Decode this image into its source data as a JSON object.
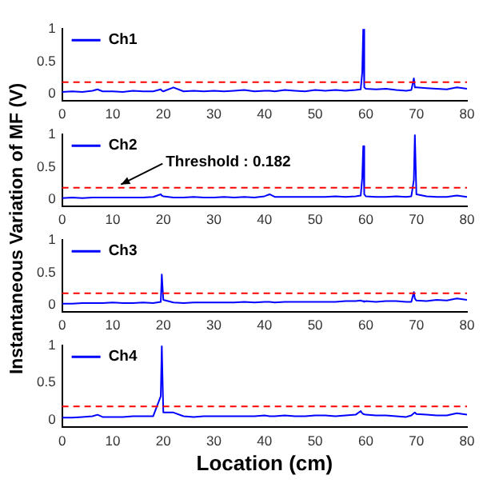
{
  "chart_data": [
    {
      "type": "line",
      "ylabel": "Instantaneous Variation of MF (V)",
      "x": [
        0,
        2,
        4,
        6,
        7,
        8,
        10,
        12,
        14,
        16,
        18,
        19.5,
        19.7,
        20,
        22,
        24,
        26,
        28,
        30,
        32,
        34,
        36,
        38,
        40,
        41,
        42,
        44,
        46,
        48,
        50,
        52,
        54,
        56,
        58,
        59,
        59.3,
        59.5,
        59.7,
        60,
        62,
        64,
        66,
        68,
        69,
        69.5,
        69.7,
        70,
        72,
        74,
        76,
        78,
        80
      ],
      "series": [
        {
          "name": "Ch1",
          "color": "#0000ff",
          "values": [
            0.03,
            0.04,
            0.03,
            0.05,
            0.07,
            0.04,
            0.04,
            0.03,
            0.05,
            0.04,
            0.04,
            0.07,
            0.05,
            0.04,
            0.1,
            0.04,
            0.05,
            0.04,
            0.05,
            0.04,
            0.05,
            0.06,
            0.04,
            0.05,
            0.05,
            0.04,
            0.06,
            0.05,
            0.04,
            0.06,
            0.05,
            0.06,
            0.05,
            0.06,
            0.07,
            0.33,
            1.0,
            0.1,
            0.08,
            0.07,
            0.08,
            0.06,
            0.05,
            0.06,
            0.24,
            0.1,
            0.1,
            0.09,
            0.08,
            0.07,
            0.1,
            0.08
          ]
        }
      ],
      "xlim": [
        0,
        80
      ],
      "xticks": [
        0,
        10,
        20,
        30,
        40,
        50,
        60,
        70,
        80
      ],
      "ylim": [
        -0.1,
        1
      ],
      "yticks": [
        0,
        0.5,
        1
      ],
      "grid": false,
      "legend": "top left",
      "marker": "none",
      "line_style": "solid",
      "ref_lines": [
        {
          "axis": "y",
          "value": 0.182,
          "color": "#ff0000",
          "line_style": "dashed"
        }
      ]
    },
    {
      "type": "line",
      "x": [
        0,
        2,
        4,
        6,
        7,
        8,
        10,
        12,
        14,
        16,
        18,
        19.5,
        19.7,
        20,
        22,
        24,
        26,
        28,
        30,
        32,
        34,
        36,
        38,
        40,
        41,
        42,
        44,
        46,
        48,
        50,
        52,
        54,
        56,
        58,
        59,
        59.3,
        59.5,
        59.7,
        60,
        62,
        64,
        66,
        68,
        69,
        69.5,
        69.7,
        70,
        72,
        74,
        76,
        78,
        80
      ],
      "series": [
        {
          "name": "Ch2",
          "color": "#0000ff",
          "values": [
            0.02,
            0.03,
            0.02,
            0.03,
            0.03,
            0.03,
            0.03,
            0.03,
            0.03,
            0.03,
            0.04,
            0.08,
            0.06,
            0.05,
            0.03,
            0.03,
            0.04,
            0.03,
            0.03,
            0.04,
            0.03,
            0.04,
            0.03,
            0.05,
            0.08,
            0.04,
            0.04,
            0.04,
            0.04,
            0.04,
            0.04,
            0.05,
            0.04,
            0.05,
            0.06,
            0.33,
            0.82,
            0.08,
            0.05,
            0.04,
            0.04,
            0.05,
            0.04,
            0.05,
            0.3,
            1.0,
            0.08,
            0.05,
            0.04,
            0.04,
            0.06,
            0.04
          ]
        }
      ],
      "xlim": [
        0,
        80
      ],
      "xticks": [
        0,
        10,
        20,
        30,
        40,
        50,
        60,
        70,
        80
      ],
      "ylim": [
        -0.1,
        1
      ],
      "yticks": [
        0,
        0.5,
        1
      ],
      "grid": false,
      "legend": "top left",
      "marker": "none",
      "line_style": "solid",
      "ref_lines": [
        {
          "axis": "y",
          "value": 0.182,
          "color": "#ff0000",
          "line_style": "dashed"
        }
      ],
      "annotations": [
        {
          "text": "Threshold : 0.182",
          "x": 11,
          "y": 0.182
        }
      ]
    },
    {
      "type": "line",
      "x": [
        0,
        2,
        4,
        6,
        7,
        8,
        10,
        12,
        14,
        16,
        18,
        19.5,
        19.7,
        20,
        22,
        24,
        26,
        28,
        30,
        32,
        34,
        36,
        38,
        40,
        41,
        42,
        44,
        46,
        48,
        50,
        52,
        54,
        56,
        58,
        59,
        59.3,
        59.5,
        59.7,
        60,
        62,
        64,
        66,
        68,
        69,
        69.5,
        69.7,
        70,
        72,
        74,
        76,
        78,
        80
      ],
      "series": [
        {
          "name": "Ch3",
          "color": "#0000ff",
          "values": [
            0.02,
            0.02,
            0.03,
            0.03,
            0.03,
            0.03,
            0.04,
            0.03,
            0.03,
            0.04,
            0.03,
            0.05,
            0.47,
            0.08,
            0.04,
            0.03,
            0.04,
            0.04,
            0.04,
            0.04,
            0.04,
            0.05,
            0.04,
            0.05,
            0.05,
            0.04,
            0.05,
            0.05,
            0.05,
            0.05,
            0.05,
            0.05,
            0.06,
            0.06,
            0.07,
            0.06,
            0.06,
            0.05,
            0.06,
            0.05,
            0.06,
            0.06,
            0.05,
            0.05,
            0.2,
            0.1,
            0.07,
            0.06,
            0.08,
            0.07,
            0.1,
            0.08
          ]
        }
      ],
      "xlim": [
        0,
        80
      ],
      "xticks": [
        0,
        10,
        20,
        30,
        40,
        50,
        60,
        70,
        80
      ],
      "ylim": [
        -0.1,
        1
      ],
      "yticks": [
        0,
        0.5,
        1
      ],
      "grid": false,
      "legend": "top left",
      "marker": "none",
      "line_style": "solid",
      "ref_lines": [
        {
          "axis": "y",
          "value": 0.182,
          "color": "#ff0000",
          "line_style": "dashed"
        }
      ]
    },
    {
      "type": "line",
      "xlabel": "Location (cm)",
      "x": [
        0,
        2,
        4,
        6,
        7,
        8,
        10,
        12,
        14,
        16,
        18,
        19.5,
        19.7,
        20,
        22,
        24,
        26,
        28,
        30,
        32,
        34,
        36,
        38,
        40,
        41,
        42,
        44,
        46,
        48,
        50,
        52,
        54,
        56,
        58,
        59,
        59.3,
        59.5,
        59.7,
        60,
        62,
        64,
        66,
        68,
        69,
        69.5,
        69.7,
        70,
        72,
        74,
        76,
        78,
        80
      ],
      "series": [
        {
          "name": "Ch4",
          "color": "#0000ff",
          "values": [
            0.03,
            0.03,
            0.04,
            0.05,
            0.07,
            0.04,
            0.04,
            0.04,
            0.05,
            0.05,
            0.05,
            0.32,
            1.0,
            0.1,
            0.1,
            0.05,
            0.04,
            0.05,
            0.05,
            0.05,
            0.05,
            0.05,
            0.05,
            0.06,
            0.05,
            0.05,
            0.06,
            0.05,
            0.05,
            0.06,
            0.06,
            0.05,
            0.06,
            0.07,
            0.12,
            0.09,
            0.08,
            0.08,
            0.07,
            0.06,
            0.06,
            0.05,
            0.04,
            0.06,
            0.09,
            0.1,
            0.08,
            0.07,
            0.06,
            0.06,
            0.09,
            0.07
          ]
        }
      ],
      "xlim": [
        0,
        80
      ],
      "xticks": [
        0,
        10,
        20,
        30,
        40,
        50,
        60,
        70,
        80
      ],
      "ylim": [
        -0.1,
        1
      ],
      "yticks": [
        0,
        0.5,
        1
      ],
      "grid": false,
      "legend": "top left",
      "marker": "none",
      "line_style": "solid",
      "ref_lines": [
        {
          "axis": "y",
          "value": 0.182,
          "color": "#ff0000",
          "line_style": "dashed"
        }
      ]
    }
  ]
}
